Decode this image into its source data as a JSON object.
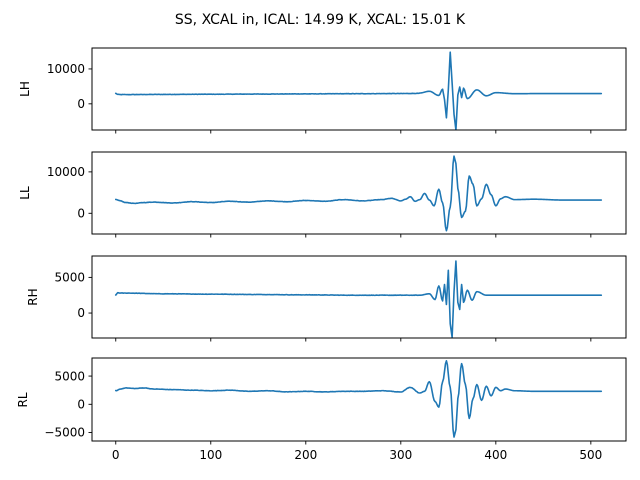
{
  "figure": {
    "title": "SS, XCAL in, ICAL: 14.99 K, XCAL: 15.01 K"
  },
  "colors": {
    "series": "#1f77b4",
    "background": "#ffffff",
    "axis": "#000000"
  },
  "chart_data": [
    {
      "type": "line",
      "ylabel": "LH",
      "xlim": [
        -25,
        537
      ],
      "ylim": [
        -7500,
        16000
      ],
      "xticks": [
        0,
        100,
        200,
        300,
        400,
        500
      ],
      "show_xticklabels": false,
      "yticks": [
        0,
        10000
      ],
      "ytick_labels": [
        "0",
        "10000"
      ],
      "grid": false,
      "baseline": {
        "x": [
          0,
          2,
          5,
          10,
          50,
          100,
          150,
          200,
          250,
          300,
          320
        ],
        "y": [
          3000,
          2700,
          2650,
          2650,
          2700,
          2750,
          2800,
          2850,
          2900,
          2950,
          3000
        ]
      },
      "pulse": {
        "x": [
          320,
          330,
          340,
          344,
          346,
          348,
          350,
          352,
          354,
          356,
          358,
          360,
          362,
          364,
          366,
          370,
          380,
          390,
          400,
          420,
          450,
          511
        ],
        "y": [
          3100,
          3600,
          2400,
          4200,
          1200,
          -4000,
          4000,
          14800,
          6000,
          -3000,
          -7500,
          2500,
          4800,
          1800,
          4500,
          1500,
          4000,
          2300,
          3200,
          2900,
          2950,
          2950
        ]
      }
    },
    {
      "type": "line",
      "ylabel": "LL",
      "xlim": [
        -25,
        537
      ],
      "ylim": [
        -5000,
        14800
      ],
      "xticks": [
        0,
        100,
        200,
        300,
        400,
        500
      ],
      "show_xticklabels": false,
      "yticks": [
        0,
        10000
      ],
      "ytick_labels": [
        "0",
        "10000"
      ],
      "grid": false,
      "baseline": {
        "x": [
          0,
          5,
          10,
          20,
          30,
          40,
          60,
          80,
          100,
          120,
          140,
          160,
          180,
          200,
          220,
          240,
          260,
          280,
          290,
          300
        ],
        "y": [
          3300,
          3000,
          2600,
          2400,
          2600,
          2700,
          2500,
          2800,
          2600,
          2900,
          2700,
          3000,
          2800,
          3100,
          2900,
          3300,
          3000,
          3300,
          3600,
          3000
        ]
      },
      "pulse": {
        "x": [
          300,
          305,
          310,
          315,
          320,
          325,
          330,
          335,
          340,
          344,
          348,
          352,
          356,
          358,
          360,
          364,
          368,
          372,
          376,
          380,
          385,
          390,
          395,
          400,
          405,
          410,
          420,
          440,
          470,
          511
        ],
        "y": [
          3000,
          3400,
          4000,
          2900,
          3300,
          4800,
          3200,
          1800,
          5800,
          2500,
          -4200,
          1500,
          13800,
          12000,
          6000,
          -1000,
          500,
          9000,
          7000,
          1800,
          3500,
          7000,
          4500,
          1800,
          3500,
          4000,
          3300,
          3400,
          3200,
          3200
        ]
      }
    },
    {
      "type": "line",
      "ylabel": "RH",
      "xlim": [
        -25,
        537
      ],
      "ylim": [
        -3500,
        8000
      ],
      "xticks": [
        0,
        100,
        200,
        300,
        400,
        500
      ],
      "show_xticklabels": false,
      "yticks": [
        0,
        5000
      ],
      "ytick_labels": [
        "0",
        "5000"
      ],
      "grid": false,
      "baseline": {
        "x": [
          0,
          2,
          5,
          10,
          50,
          100,
          150,
          200,
          250,
          300,
          320
        ],
        "y": [
          2500,
          2850,
          2800,
          2800,
          2700,
          2650,
          2600,
          2550,
          2500,
          2500,
          2500
        ]
      },
      "pulse": {
        "x": [
          320,
          330,
          336,
          340,
          344,
          346,
          348,
          350,
          352,
          354,
          356,
          358,
          360,
          362,
          364,
          366,
          370,
          375,
          380,
          390,
          420,
          511
        ],
        "y": [
          2500,
          2700,
          1900,
          3800,
          1700,
          4000,
          1200,
          6000,
          -1500,
          -3400,
          3000,
          7300,
          1500,
          500,
          4000,
          1500,
          3200,
          1800,
          3000,
          2500,
          2500,
          2500
        ]
      }
    },
    {
      "type": "line",
      "ylabel": "RL",
      "xlim": [
        -25,
        537
      ],
      "ylim": [
        -6500,
        8200
      ],
      "xticks": [
        0,
        100,
        200,
        300,
        400,
        500
      ],
      "xtick_labels": [
        "0",
        "100",
        "200",
        "300",
        "400",
        "500"
      ],
      "show_xticklabels": true,
      "yticks": [
        -5000,
        0,
        5000
      ],
      "ytick_labels": [
        "−5000",
        "0",
        "5000"
      ],
      "grid": false,
      "baseline": {
        "x": [
          0,
          5,
          10,
          20,
          30,
          40,
          60,
          80,
          100,
          120,
          140,
          160,
          180,
          200,
          220,
          240,
          260,
          280,
          300,
          310,
          320
        ],
        "y": [
          2400,
          2700,
          2900,
          2800,
          2900,
          2700,
          2600,
          2500,
          2400,
          2500,
          2300,
          2400,
          2200,
          2300,
          2200,
          2300,
          2300,
          2400,
          2200,
          3000,
          2000
        ]
      },
      "pulse": {
        "x": [
          320,
          325,
          330,
          336,
          340,
          344,
          348,
          352,
          356,
          358,
          360,
          364,
          368,
          372,
          376,
          380,
          385,
          390,
          395,
          400,
          405,
          410,
          420,
          440,
          470,
          511
        ],
        "y": [
          2000,
          2300,
          4000,
          500,
          -500,
          4000,
          7700,
          3000,
          -5800,
          -4500,
          1000,
          7200,
          3500,
          -2500,
          1000,
          3500,
          700,
          3200,
          1500,
          3000,
          2400,
          2700,
          2400,
          2300,
          2300,
          2300
        ]
      }
    }
  ]
}
